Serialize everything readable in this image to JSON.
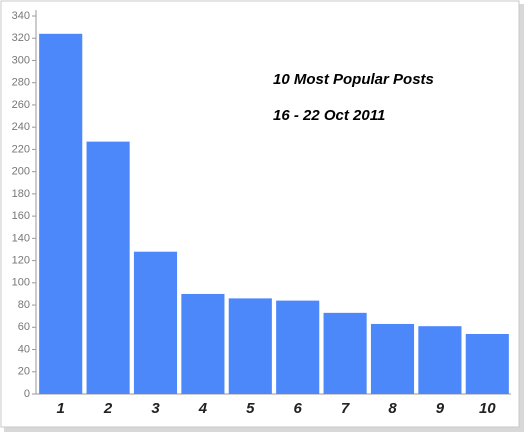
{
  "chart_data": {
    "type": "bar",
    "title": "10 Most Popular Posts",
    "subtitle": "16 - 22 Oct 2011",
    "categories": [
      "1",
      "2",
      "3",
      "4",
      "5",
      "6",
      "7",
      "8",
      "9",
      "10"
    ],
    "values": [
      324,
      227,
      128,
      90,
      86,
      84,
      73,
      63,
      61,
      54
    ],
    "color": "#4d88fb",
    "ylim": [
      0,
      340
    ],
    "yticks": [
      0,
      20,
      40,
      60,
      80,
      100,
      120,
      140,
      160,
      180,
      200,
      220,
      240,
      260,
      280,
      300,
      320,
      340
    ]
  }
}
